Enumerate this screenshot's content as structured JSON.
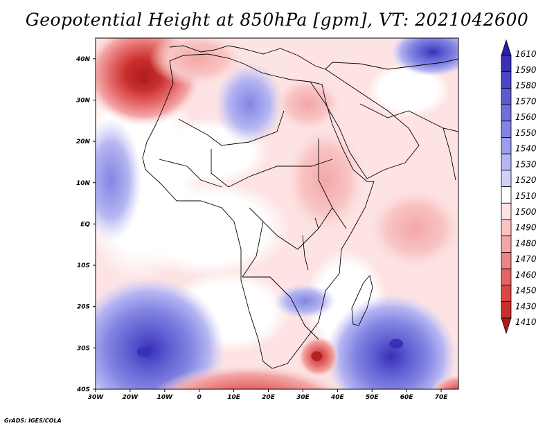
{
  "title": "Geopotential Height at 850hPa [gpm], VT: 2021042600",
  "credit": "GrADS: IGES/COLA",
  "map": {
    "projection": "latlon",
    "lon_range": [
      -30,
      75
    ],
    "lat_range": [
      -40,
      45
    ],
    "lon_ticks": [
      {
        "value": -30,
        "label": "30W"
      },
      {
        "value": -20,
        "label": "20W"
      },
      {
        "value": -10,
        "label": "10W"
      },
      {
        "value": 0,
        "label": "0"
      },
      {
        "value": 10,
        "label": "10E"
      },
      {
        "value": 20,
        "label": "20E"
      },
      {
        "value": 30,
        "label": "30E"
      },
      {
        "value": 40,
        "label": "40E"
      },
      {
        "value": 50,
        "label": "50E"
      },
      {
        "value": 60,
        "label": "60E"
      },
      {
        "value": 70,
        "label": "70E"
      }
    ],
    "lat_ticks": [
      {
        "value": 40,
        "label": "40N"
      },
      {
        "value": 30,
        "label": "30N"
      },
      {
        "value": 20,
        "label": "20N"
      },
      {
        "value": 10,
        "label": "10N"
      },
      {
        "value": 0,
        "label": "EQ"
      },
      {
        "value": -10,
        "label": "10S"
      },
      {
        "value": -20,
        "label": "20S"
      },
      {
        "value": -30,
        "label": "30S"
      },
      {
        "value": -40,
        "label": "40S"
      }
    ],
    "background_color": "#fde3e3",
    "features": [
      {
        "name": "azores-high-low-center",
        "lon": -16,
        "lat": 35,
        "color": "#b22222",
        "kind": "low"
      },
      {
        "name": "atlantic-south-high",
        "lon": -16,
        "lat": -31,
        "color": "#3a2fb8",
        "kind": "high"
      },
      {
        "name": "indian-south-high",
        "lon": 57,
        "lat": -29,
        "color": "#3a2fb8",
        "kind": "high"
      },
      {
        "name": "south-africa-low",
        "lon": 34,
        "lat": -32,
        "color": "#b22222",
        "kind": "low"
      }
    ]
  },
  "colorbar": {
    "levels": [
      "1610",
      "1590",
      "1580",
      "1570",
      "1560",
      "1550",
      "1540",
      "1530",
      "1520",
      "1510",
      "1500",
      "1490",
      "1480",
      "1470",
      "1460",
      "1450",
      "1430",
      "1410"
    ],
    "colors": [
      "#2b1ea3",
      "#3a2fb8",
      "#4a45c6",
      "#5b5bd0",
      "#6e6fda",
      "#8384e2",
      "#9c9ded",
      "#b6b6f3",
      "#d1d1f8",
      "#ffffff",
      "#fde3e3",
      "#f9c5c5",
      "#f3a6a6",
      "#ec8585",
      "#e36464",
      "#d84646",
      "#c92e2e",
      "#b01d1d"
    ]
  }
}
